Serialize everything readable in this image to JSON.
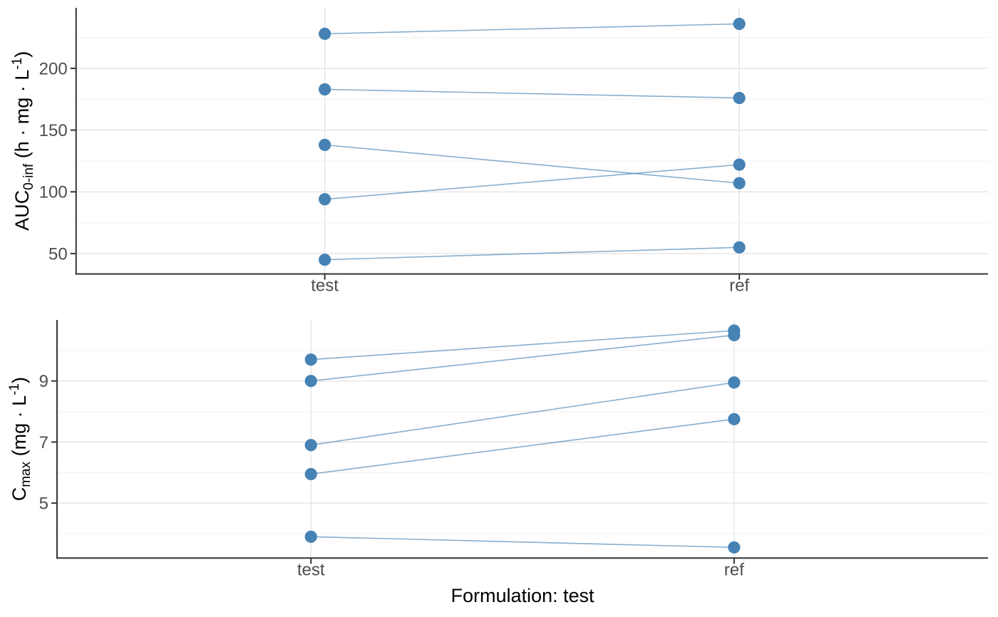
{
  "style": {
    "background": "#ffffff",
    "accent_color": "#4682B4",
    "line_opacity": 0.65,
    "axis_line_color": "#333333",
    "tick_label_color": "#4d4d4d",
    "title_color": "#000000",
    "grid_major_color": "#e2e2e2",
    "grid_minor_color": "#f0f0f0"
  },
  "x_axis_title": "Formulation: test",
  "chart_data": [
    {
      "type": "line",
      "id": "auc",
      "description": "paired dot plot of AUC0-inf per subject, test vs ref formulation",
      "categories": [
        "test",
        "ref"
      ],
      "ylabel_text": "AUC0-inf  (h · mg · L-1)",
      "ylabel_rich": [
        {
          "text": "AUC"
        },
        {
          "text": "0-inf",
          "script": "sub"
        },
        {
          "text": "  (h · mg · L"
        },
        {
          "text": "-1",
          "script": "sup"
        },
        {
          "text": ")"
        }
      ],
      "yticks": [
        50,
        100,
        150,
        200
      ],
      "yticks_minor": [
        75,
        125,
        175,
        225
      ],
      "ylim": [
        33.5,
        249
      ],
      "grid": true,
      "pairs_test_ref": [
        [
          228,
          236
        ],
        [
          183,
          176
        ],
        [
          138,
          107
        ],
        [
          94,
          122
        ],
        [
          45,
          55
        ]
      ]
    },
    {
      "type": "line",
      "id": "cmax",
      "description": "paired dot plot of Cmax per subject, test vs ref formulation",
      "categories": [
        "test",
        "ref"
      ],
      "ylabel_text": "Cmax  (mg · L-1)",
      "ylabel_rich": [
        {
          "text": "C"
        },
        {
          "text": "max",
          "script": "sub"
        },
        {
          "text": "  (mg · L"
        },
        {
          "text": "-1",
          "script": "sup"
        },
        {
          "text": ")"
        }
      ],
      "yticks": [
        5,
        7,
        9
      ],
      "yticks_minor": [
        4,
        6,
        8,
        10
      ],
      "ylim": [
        3.2,
        11.0
      ],
      "grid": true,
      "pairs_test_ref": [
        [
          9.7,
          10.65
        ],
        [
          9.0,
          10.5
        ],
        [
          6.9,
          8.95
        ],
        [
          5.95,
          7.75
        ],
        [
          3.9,
          3.55
        ]
      ]
    }
  ]
}
